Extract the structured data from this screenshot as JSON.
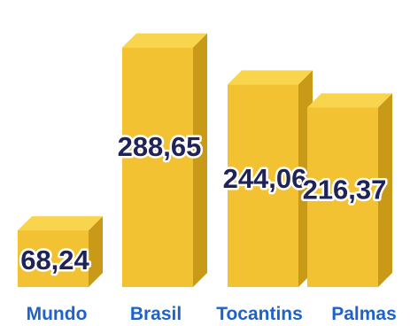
{
  "chart_data": {
    "type": "bar",
    "categories": [
      "Mundo",
      "Brasil",
      "Tocantins",
      "Palmas"
    ],
    "values": [
      68.24,
      288.65,
      244.06,
      216.37
    ],
    "value_labels": [
      "68,24",
      "288,65",
      "244,06",
      "216,37"
    ],
    "ylim": [
      0,
      300
    ],
    "grid": false,
    "legend": "none",
    "colors": {
      "front": "#f2c232",
      "top": "#f8d54d",
      "side": "#c99a17",
      "value_text": "#1f2358",
      "value_outline": "#ffffff",
      "category_text": "#1f62c9"
    }
  }
}
